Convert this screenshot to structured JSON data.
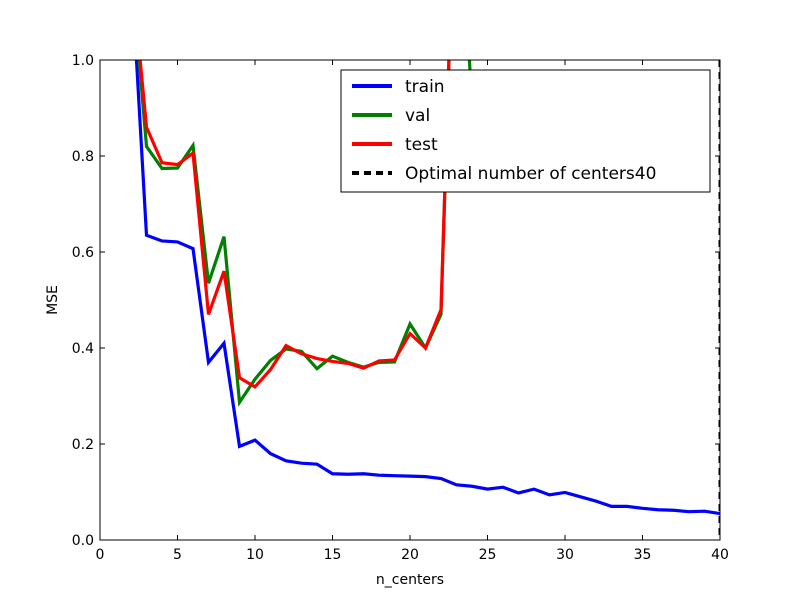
{
  "chart_data": {
    "type": "line",
    "title": "",
    "xlabel": "n_centers",
    "ylabel": "MSE",
    "xlim": [
      0,
      40
    ],
    "ylim": [
      0.0,
      1.0
    ],
    "xticks": [
      0,
      5,
      10,
      15,
      20,
      25,
      30,
      35,
      40
    ],
    "yticks": [
      0.0,
      0.2,
      0.4,
      0.6,
      0.8,
      1.0
    ],
    "xtick_labels": [
      "0",
      "5",
      "10",
      "15",
      "20",
      "25",
      "30",
      "35",
      "40"
    ],
    "ytick_labels": [
      "0.0",
      "0.2",
      "0.4",
      "0.6",
      "0.8",
      "1.0"
    ],
    "grid": false,
    "legend_position": "top-right",
    "series": [
      {
        "name": "train",
        "color": "#0000ff",
        "x": [
          2,
          3,
          4,
          5,
          6,
          7,
          8,
          9,
          10,
          11,
          12,
          13,
          14,
          15,
          16,
          17,
          18,
          19,
          20,
          21,
          22,
          23,
          24,
          25,
          26,
          27,
          28,
          29,
          30,
          31,
          32,
          33,
          34,
          35,
          36,
          37,
          38,
          39,
          40
        ],
        "values": [
          1.2,
          0.635,
          0.623,
          0.621,
          0.607,
          0.37,
          0.41,
          0.195,
          0.208,
          0.18,
          0.165,
          0.16,
          0.158,
          0.138,
          0.137,
          0.138,
          0.135,
          0.134,
          0.133,
          0.132,
          0.128,
          0.115,
          0.112,
          0.106,
          0.11,
          0.098,
          0.106,
          0.094,
          0.099,
          0.09,
          0.081,
          0.07,
          0.07,
          0.066,
          0.063,
          0.062,
          0.059,
          0.06,
          0.055
        ]
      },
      {
        "name": "val",
        "color": "#008000",
        "x": [
          2,
          3,
          4,
          5,
          6,
          7,
          8,
          9,
          10,
          11,
          12,
          13,
          14,
          15,
          16,
          17,
          18,
          19,
          20,
          21,
          22,
          23,
          24
        ],
        "values": [
          1.2,
          0.82,
          0.774,
          0.775,
          0.822,
          0.535,
          0.632,
          0.287,
          0.335,
          0.374,
          0.398,
          0.393,
          0.357,
          0.383,
          0.37,
          0.36,
          0.37,
          0.371,
          0.45,
          0.4,
          0.47,
          1.5,
          0.9
        ]
      },
      {
        "name": "test",
        "color": "#ff0000",
        "x": [
          2,
          3,
          4,
          5,
          6,
          7,
          8,
          9,
          10,
          11,
          12,
          13,
          14,
          15,
          16,
          17,
          18,
          19,
          20,
          21,
          22,
          23
        ],
        "values": [
          1.2,
          0.86,
          0.786,
          0.782,
          0.806,
          0.47,
          0.56,
          0.338,
          0.319,
          0.355,
          0.405,
          0.388,
          0.378,
          0.372,
          0.368,
          0.358,
          0.373,
          0.375,
          0.43,
          0.4,
          0.48,
          1.5
        ]
      }
    ],
    "vline": {
      "name": "Optimal number of centers40",
      "x": 40,
      "color": "#000000",
      "style": "dashed"
    }
  }
}
